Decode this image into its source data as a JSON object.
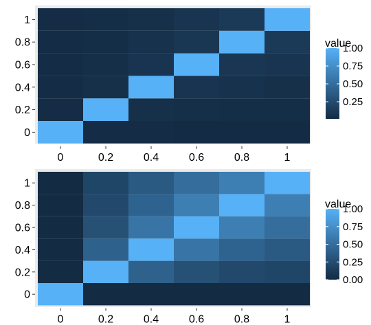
{
  "chart_data": [
    {
      "type": "heatmap",
      "x": [
        0,
        0.2,
        0.4,
        0.6,
        0.8,
        1
      ],
      "y": [
        0,
        0.2,
        0.4,
        0.6,
        0.8,
        1
      ],
      "x_tick_labels": [
        "0",
        "0.2",
        "0.4",
        "0.6",
        "0.8",
        "1"
      ],
      "y_tick_labels": [
        "0",
        "0.2",
        "0.4",
        "0.6",
        "0.8",
        "1"
      ],
      "values": [
        [
          1.0,
          0.02,
          0.02,
          0.01,
          0.01,
          0.01
        ],
        [
          0.02,
          1.0,
          0.05,
          0.04,
          0.03,
          0.03
        ],
        [
          0.02,
          0.05,
          1.0,
          0.08,
          0.06,
          0.05
        ],
        [
          0.02,
          0.04,
          0.08,
          1.0,
          0.1,
          0.08
        ],
        [
          0.02,
          0.03,
          0.06,
          0.1,
          1.0,
          0.12
        ],
        [
          0.02,
          0.03,
          0.05,
          0.08,
          0.12,
          1.0
        ]
      ],
      "legend": {
        "title": "value",
        "breaks": [
          0.25,
          0.5,
          0.75,
          1.0
        ],
        "labels": [
          "0.25",
          "0.50",
          "0.75",
          "1.00"
        ]
      },
      "value_range": [
        0.01,
        1.0
      ],
      "colors": {
        "low": "#132B43",
        "high": "#56B1F7"
      },
      "grid": true,
      "panel_background": "#EBEBEB"
    },
    {
      "type": "heatmap",
      "x": [
        0,
        0.2,
        0.4,
        0.6,
        0.8,
        1
      ],
      "y": [
        0,
        0.2,
        0.4,
        0.6,
        0.8,
        1
      ],
      "x_tick_labels": [
        "0",
        "0.2",
        "0.4",
        "0.6",
        "0.8",
        "1"
      ],
      "y_tick_labels": [
        "0",
        "0.2",
        "0.4",
        "0.6",
        "0.8",
        "1"
      ],
      "values": [
        [
          1.0,
          0.0,
          0.0,
          0.0,
          0.0,
          0.0
        ],
        [
          0.0,
          1.0,
          0.4,
          0.28,
          0.22,
          0.2
        ],
        [
          0.0,
          0.4,
          1.0,
          0.55,
          0.42,
          0.35
        ],
        [
          0.0,
          0.28,
          0.55,
          1.0,
          0.62,
          0.5
        ],
        [
          0.0,
          0.22,
          0.42,
          0.62,
          1.0,
          0.62
        ],
        [
          0.0,
          0.2,
          0.35,
          0.5,
          0.62,
          1.0
        ]
      ],
      "legend": {
        "title": "value",
        "breaks": [
          0.0,
          0.25,
          0.5,
          0.75,
          1.0
        ],
        "labels": [
          "0.00",
          "0.25",
          "0.50",
          "0.75",
          "1.00"
        ]
      },
      "value_range": [
        0.0,
        1.0
      ],
      "colors": {
        "low": "#132B43",
        "high": "#56B1F7"
      },
      "grid": true,
      "panel_background": "#EBEBEB"
    }
  ]
}
